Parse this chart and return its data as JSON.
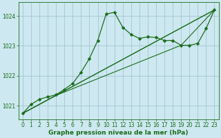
{
  "bg_color": "#cde8f0",
  "grid_color": "#9bbfcc",
  "line_color": "#1a6b1a",
  "title": "Graphe pression niveau de la mer (hPa)",
  "xlim": [
    -0.5,
    23.5
  ],
  "ylim": [
    1020.55,
    1024.45
  ],
  "yticks": [
    1021,
    1022,
    1023,
    1024
  ],
  "xticks": [
    0,
    1,
    2,
    3,
    4,
    5,
    6,
    7,
    8,
    9,
    10,
    11,
    12,
    13,
    14,
    15,
    16,
    17,
    18,
    19,
    20,
    21,
    22,
    23
  ],
  "line1_x": [
    0,
    23
  ],
  "line1_y": [
    1020.75,
    1024.2
  ],
  "line2_x": [
    0,
    4,
    23
  ],
  "line2_y": [
    1020.75,
    1021.35,
    1024.2
  ],
  "line3_x": [
    0,
    4,
    19,
    23
  ],
  "line3_y": [
    1020.75,
    1021.35,
    1023.02,
    1024.2
  ],
  "main_x": [
    0,
    1,
    2,
    3,
    4,
    5,
    6,
    7,
    8,
    9,
    10,
    11,
    12,
    13,
    14,
    15,
    16,
    17,
    18,
    19,
    20,
    21,
    22,
    23
  ],
  "main_y": [
    1020.75,
    1021.05,
    1021.22,
    1021.3,
    1021.37,
    1021.55,
    1021.75,
    1022.12,
    1022.58,
    1023.18,
    1024.06,
    1024.12,
    1023.62,
    1023.38,
    1023.25,
    1023.3,
    1023.28,
    1023.18,
    1023.18,
    1023.02,
    1023.02,
    1023.08,
    1023.58,
    1024.2
  ],
  "tick_fontsize": 5.5,
  "xlabel_fontsize": 6.5,
  "marker_size": 2.5
}
